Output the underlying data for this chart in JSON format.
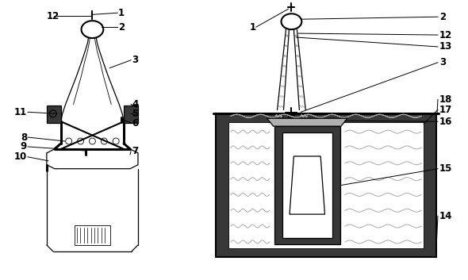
{
  "bg_color": "#ffffff",
  "line_color": "#000000",
  "dark_gray": "#383838",
  "mid_gray": "#707070",
  "light_gray": "#b0b0b0",
  "wave_color": "#aaaaaa",
  "fig_width": 5.9,
  "fig_height": 3.53,
  "dpi": 100
}
